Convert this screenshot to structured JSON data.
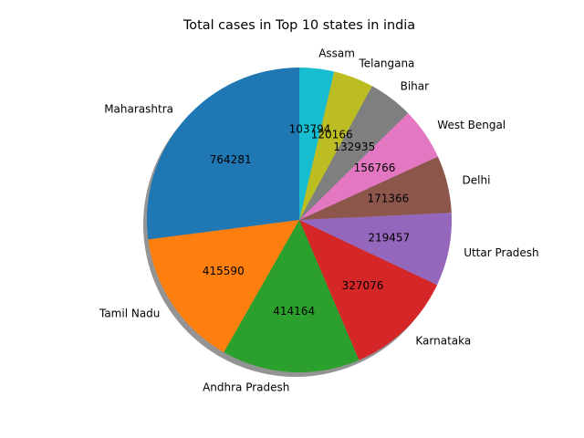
{
  "chart_data": {
    "type": "pie",
    "title": "Total cases in Top 10 states in india",
    "categories": [
      "Maharashtra",
      "Tamil Nadu",
      "Andhra Pradesh",
      "Karnataka",
      "Uttar Pradesh",
      "Delhi",
      "West Bengal",
      "Bihar",
      "Telangana",
      "Assam"
    ],
    "values": [
      764281,
      415590,
      414164,
      327076,
      219457,
      171366,
      156766,
      132935,
      120166,
      103794
    ],
    "value_labels": [
      "764281",
      "415590",
      "414164",
      "327076",
      "219457",
      "171366",
      "156766",
      "132935",
      "120166",
      "103794"
    ],
    "colors": [
      "#1f77b4",
      "#ff7f0e",
      "#2ca02c",
      "#d62728",
      "#9467bd",
      "#8c564b",
      "#e377c2",
      "#7f7f7f",
      "#bcbd22",
      "#17becf"
    ],
    "start_angle_deg": 90,
    "direction": "counterclockwise",
    "shadow": true,
    "legend": "none"
  }
}
